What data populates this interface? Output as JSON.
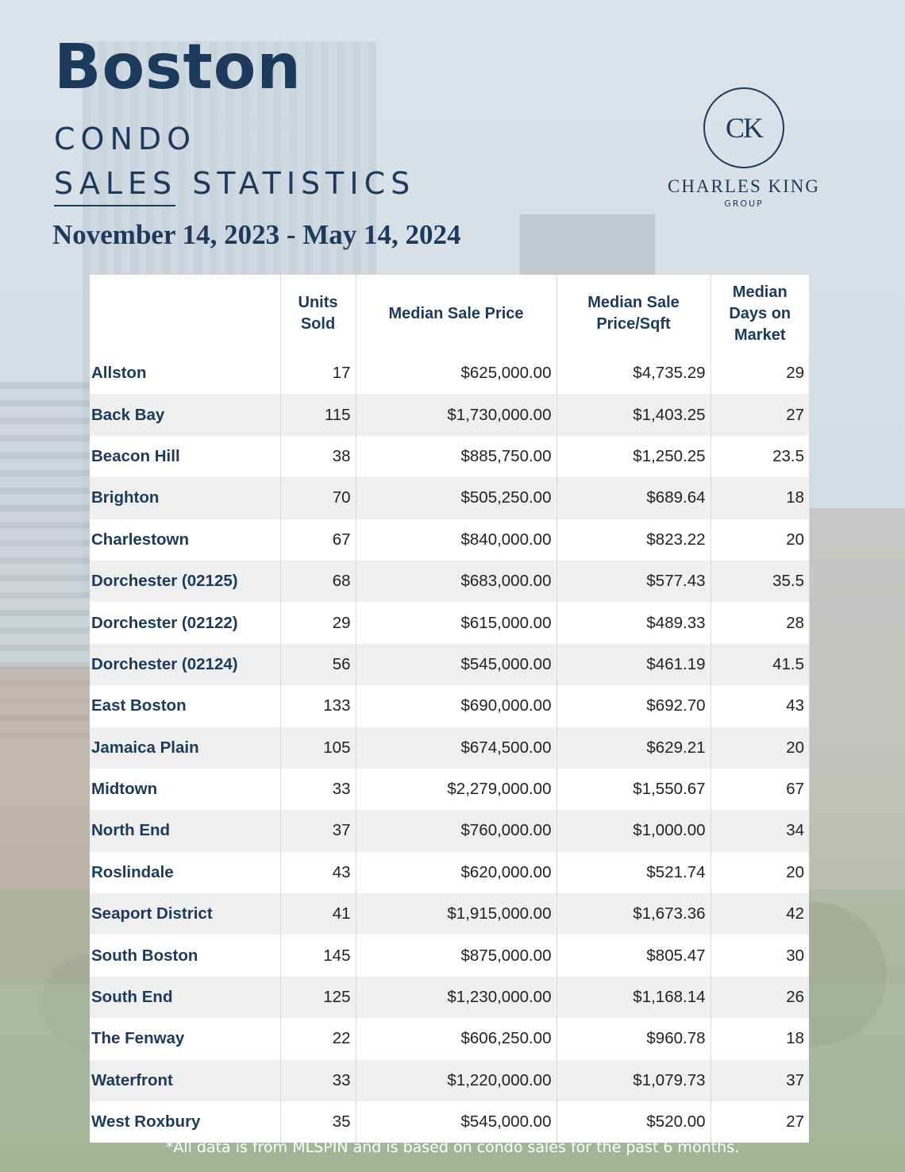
{
  "header": {
    "title": "Boston",
    "subtitle_line1": "CONDO",
    "subtitle_line2": "SALES STATISTICS",
    "date_range": "November 14, 2023 - May 14, 2024"
  },
  "logo": {
    "monogram": "CK",
    "name": "CHARLES KING",
    "tagline": "GROUP"
  },
  "table": {
    "columns": [
      "",
      "Units Sold",
      "Median Sale Price",
      "Median Sale Price/Sqft",
      "Median Days on Market"
    ],
    "rows": [
      [
        "Allston",
        "17",
        "$625,000.00",
        "$4,735.29",
        "29"
      ],
      [
        "Back Bay",
        "115",
        "$1,730,000.00",
        "$1,403.25",
        "27"
      ],
      [
        "Beacon Hill",
        "38",
        "$885,750.00",
        "$1,250.25",
        "23.5"
      ],
      [
        "Brighton",
        "70",
        "$505,250.00",
        "$689.64",
        "18"
      ],
      [
        "Charlestown",
        "67",
        "$840,000.00",
        "$823.22",
        "20"
      ],
      [
        "Dorchester (02125)",
        "68",
        "$683,000.00",
        "$577.43",
        "35.5"
      ],
      [
        "Dorchester (02122)",
        "29",
        "$615,000.00",
        "$489.33",
        "28"
      ],
      [
        "Dorchester (02124)",
        "56",
        "$545,000.00",
        "$461.19",
        "41.5"
      ],
      [
        "East Boston",
        "133",
        "$690,000.00",
        "$692.70",
        "43"
      ],
      [
        "Jamaica Plain",
        "105",
        "$674,500.00",
        "$629.21",
        "20"
      ],
      [
        "Midtown",
        "33",
        "$2,279,000.00",
        "$1,550.67",
        "67"
      ],
      [
        "North End",
        "37",
        "$760,000.00",
        "$1,000.00",
        "34"
      ],
      [
        "Roslindale",
        "43",
        "$620,000.00",
        "$521.74",
        "20"
      ],
      [
        "Seaport District",
        "41",
        "$1,915,000.00",
        "$1,673.36",
        "42"
      ],
      [
        "South Boston",
        "145",
        "$875,000.00",
        "$805.47",
        "30"
      ],
      [
        "South End",
        "125",
        "$1,230,000.00",
        "$1,168.14",
        "26"
      ],
      [
        "The Fenway",
        "22",
        "$606,250.00",
        "$960.78",
        "18"
      ],
      [
        "Waterfront",
        "33",
        "$1,220,000.00",
        "$1,079.73",
        "37"
      ],
      [
        "West Roxbury",
        "35",
        "$545,000.00",
        "$520.00",
        "27"
      ]
    ]
  },
  "footnote": "*All data is from MLSPIN and is based on condo sales for the past 6 months."
}
